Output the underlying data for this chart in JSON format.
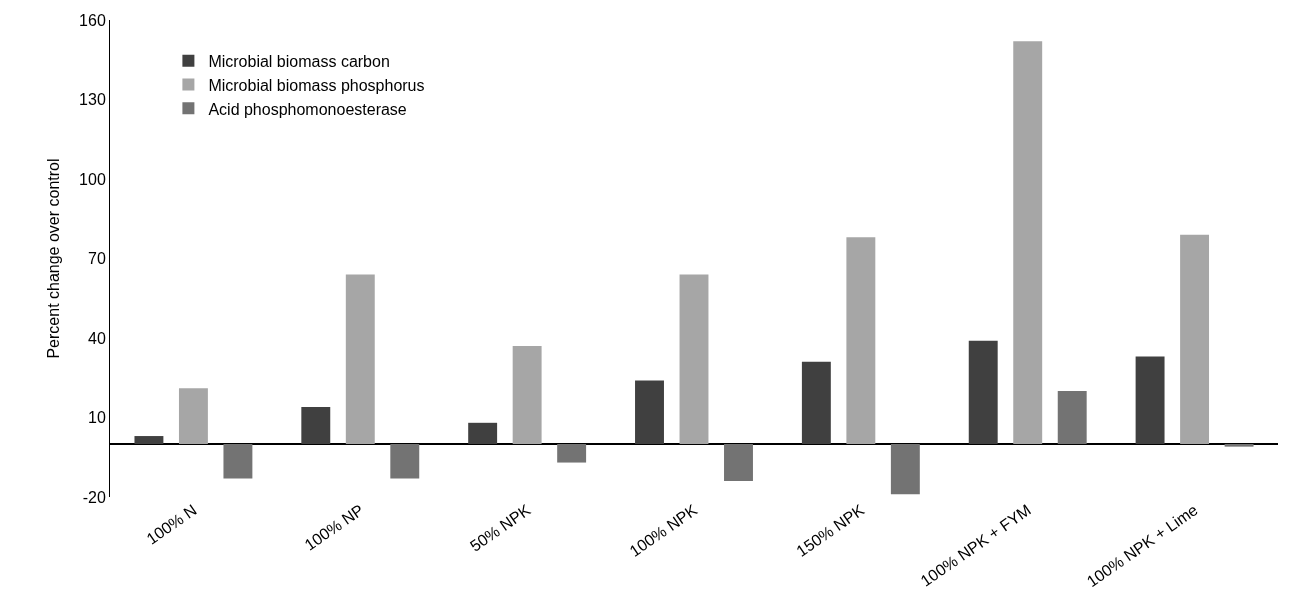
{
  "chart_data": {
    "type": "bar",
    "ylabel": "Percent change over control",
    "categories": [
      "100% N",
      "100% NP",
      "50% NPK",
      "100% NPK",
      "150% NPK",
      "100% NPK + FYM",
      "100% NPK + Lime"
    ],
    "series": [
      {
        "name": "Microbial biomass carbon",
        "color": "#404040",
        "values": [
          3,
          14,
          8,
          24,
          31,
          39,
          33
        ]
      },
      {
        "name": "Microbial biomass phosphorus",
        "color": "#a6a6a6",
        "values": [
          21,
          64,
          37,
          64,
          78,
          152,
          79
        ]
      },
      {
        "name": "Acid phosphomonoesterase",
        "color": "#737373",
        "values": [
          -13,
          -13,
          -7,
          -14,
          -19,
          20,
          -1
        ]
      }
    ],
    "ylim": [
      -20,
      160
    ],
    "yticks": [
      -20,
      10,
      40,
      70,
      100,
      130,
      160
    ],
    "legend": "top left"
  }
}
